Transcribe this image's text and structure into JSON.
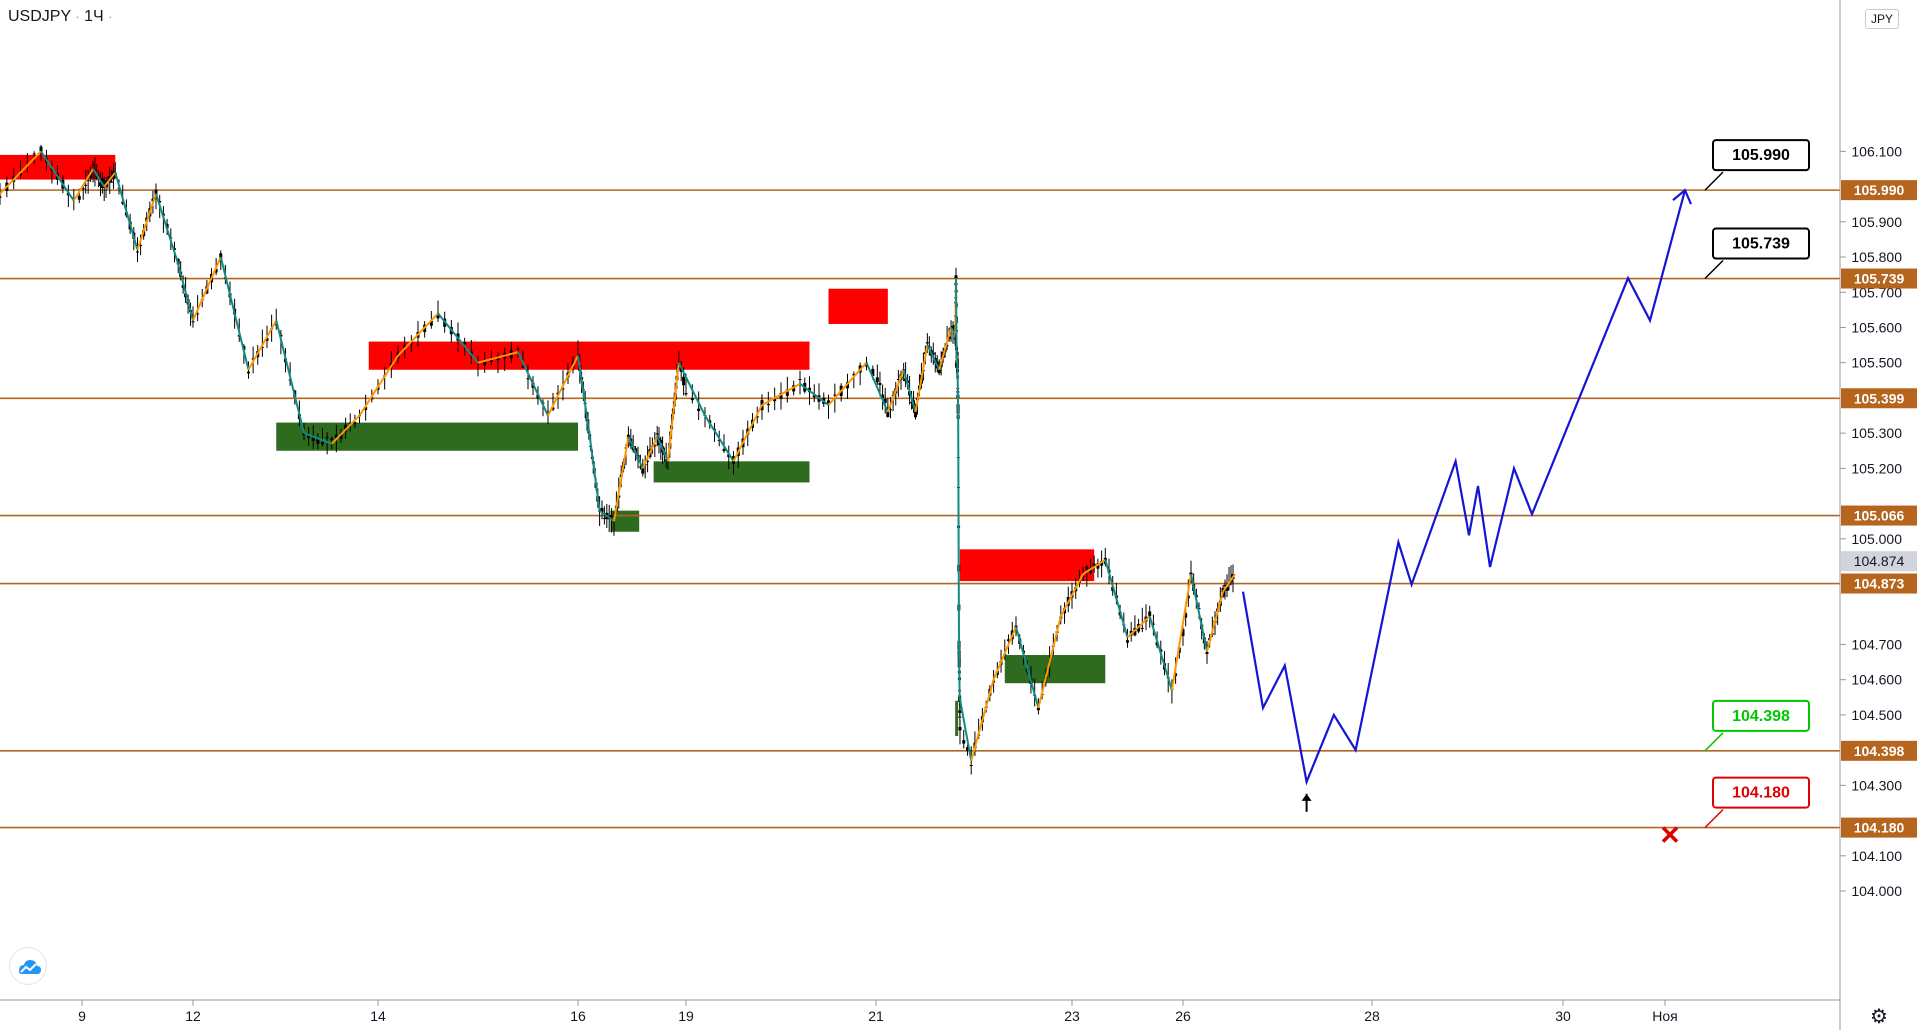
{
  "header": {
    "symbol": "USDJPY",
    "separator": "·",
    "interval": "1Ч",
    "dot": "·"
  },
  "currency": "JPY",
  "settings_icon": "gear-icon",
  "logo_icon": "tradingview-cloud-icon",
  "colors": {
    "level_line": "#b5651d",
    "resistance_zone": "#ff0000",
    "support_zone": "#2e6b1f",
    "swing_up": "#ff9800",
    "swing_down": "#138a84",
    "forecast": "#1515d6",
    "target_up": "#000000",
    "target_down": "#00c800",
    "stop": "#e00000",
    "current_price": "#d1d4dc"
  },
  "chart_data": {
    "type": "line",
    "symbol": "USDJPY",
    "interval": "1H",
    "y_range": [
      103.97,
      106.18
    ],
    "y_ticks": [
      106.1,
      105.9,
      105.8,
      105.7,
      105.6,
      105.5,
      105.3,
      105.2,
      105.0,
      104.7,
      104.6,
      104.5,
      104.3,
      104.1,
      104.0
    ],
    "y_tick_labels": [
      "106.100",
      "105.900",
      "105.800",
      "105.700",
      "105.600",
      "105.500",
      "105.300",
      "105.200",
      "105.000",
      "104.700",
      "104.600",
      "104.500",
      "104.300",
      "104.100",
      "104.000"
    ],
    "x_ticks": [
      "9",
      "12",
      "14",
      "16",
      "19",
      "21",
      "23",
      "26",
      "28",
      "30",
      "Ноя"
    ],
    "levels": [
      {
        "value": 105.99,
        "label": "105.990"
      },
      {
        "value": 105.739,
        "label": "105.739"
      },
      {
        "value": 105.399,
        "label": "105.399"
      },
      {
        "value": 105.066,
        "label": "105.066"
      },
      {
        "value": 104.873,
        "label": "104.873"
      },
      {
        "value": 104.398,
        "label": "104.398"
      },
      {
        "value": 104.18,
        "label": "104.180"
      }
    ],
    "current_price": {
      "value": 104.874,
      "label": "104.874"
    },
    "resistance_zones": [
      {
        "x0": 0,
        "x1": 9.9,
        "y0": 106.02,
        "y1": 106.09
      },
      {
        "x0": 13.9,
        "x1": 20.3,
        "y0": 105.48,
        "y1": 105.56
      },
      {
        "x0": 20.5,
        "x1": 21.3,
        "y0": 105.61,
        "y1": 105.71
      },
      {
        "x0": 25.9,
        "x1": 28.4,
        "y0": 104.88,
        "y1": 104.97
      }
    ],
    "support_zones": [
      {
        "x0": 12.9,
        "x1": 16.0,
        "y0": 105.25,
        "y1": 105.33
      },
      {
        "x0": 16.9,
        "x1": 17.7,
        "y0": 105.02,
        "y1": 105.08
      },
      {
        "x0": 18.1,
        "x1": 20.3,
        "y0": 105.16,
        "y1": 105.22
      },
      {
        "x0": 23.1,
        "x1": 24.9,
        "y0": 104.44,
        "y1": 104.54
      },
      {
        "x0": 26.8,
        "x1": 28.6,
        "y0": 104.59,
        "y1": 104.67
      }
    ],
    "price_path": [
      [
        8.0,
        105.98
      ],
      [
        8.5,
        106.1
      ],
      [
        8.9,
        105.96
      ],
      [
        9.3,
        106.05
      ],
      [
        9.6,
        106.0
      ],
      [
        9.9,
        106.04
      ],
      [
        10.5,
        105.82
      ],
      [
        11.0,
        105.98
      ],
      [
        11.6,
        105.78
      ],
      [
        12.0,
        105.62
      ],
      [
        12.3,
        105.8
      ],
      [
        12.6,
        105.48
      ],
      [
        12.9,
        105.62
      ],
      [
        13.2,
        105.3
      ],
      [
        13.5,
        105.27
      ],
      [
        13.8,
        105.35
      ],
      [
        14.2,
        105.52
      ],
      [
        14.6,
        105.64
      ],
      [
        15.0,
        105.5
      ],
      [
        15.4,
        105.53
      ],
      [
        15.7,
        105.35
      ],
      [
        16.0,
        105.52
      ],
      [
        16.3,
        105.31
      ],
      [
        16.6,
        105.08
      ],
      [
        17.0,
        105.05
      ],
      [
        17.4,
        105.29
      ],
      [
        17.8,
        105.2
      ],
      [
        18.2,
        105.29
      ],
      [
        18.5,
        105.22
      ],
      [
        18.8,
        105.5
      ],
      [
        19.2,
        105.35
      ],
      [
        19.5,
        105.22
      ],
      [
        19.8,
        105.38
      ],
      [
        20.2,
        105.44
      ],
      [
        20.5,
        105.38
      ],
      [
        20.9,
        105.5
      ],
      [
        21.3,
        105.36
      ],
      [
        21.7,
        105.48
      ],
      [
        22.0,
        105.36
      ],
      [
        22.3,
        105.55
      ],
      [
        22.6,
        105.48
      ],
      [
        22.9,
        105.6
      ],
      [
        23.2,
        105.58
      ],
      [
        23.6,
        105.74
      ],
      [
        24.0,
        105.5
      ],
      [
        24.3,
        105.52
      ],
      [
        24.6,
        105.46
      ],
      [
        24.9,
        105.35
      ],
      [
        25.4,
        104.7
      ],
      [
        25.8,
        104.55
      ],
      [
        26.2,
        104.37
      ],
      [
        26.6,
        104.6
      ],
      [
        27.0,
        104.75
      ],
      [
        27.4,
        104.52
      ],
      [
        27.8,
        104.78
      ],
      [
        28.2,
        104.9
      ],
      [
        28.6,
        104.94
      ],
      [
        29.0,
        104.72
      ],
      [
        29.4,
        104.78
      ],
      [
        29.8,
        104.57
      ],
      [
        30.2,
        104.9
      ],
      [
        30.6,
        104.68
      ],
      [
        31.0,
        104.85
      ],
      [
        31.3,
        104.9
      ]
    ],
    "forecast_path": [
      [
        31.5,
        104.85
      ],
      [
        32.0,
        104.52
      ],
      [
        32.4,
        104.64
      ],
      [
        32.8,
        104.31
      ],
      [
        33.3,
        104.5
      ],
      [
        33.7,
        104.4
      ],
      [
        34.6,
        104.99
      ],
      [
        34.9,
        104.87
      ],
      [
        35.9,
        105.22
      ],
      [
        36.3,
        105.01
      ],
      [
        36.6,
        105.15
      ],
      [
        37.0,
        104.92
      ],
      [
        37.8,
        105.2
      ],
      [
        38.2,
        105.07
      ],
      [
        39.8,
        105.74
      ],
      [
        40.2,
        105.62
      ],
      [
        40.9,
        105.99
      ]
    ],
    "annotations": [
      {
        "text": "105.990",
        "kind": "target",
        "x": 40.9,
        "y": 105.99
      },
      {
        "text": "105.739",
        "kind": "target",
        "x": 40.9,
        "y": 105.739
      },
      {
        "text": "104.398",
        "kind": "take-profit",
        "x": 40.9,
        "y": 104.398
      },
      {
        "text": "104.180",
        "kind": "stop",
        "x": 40.9,
        "y": 104.18
      }
    ],
    "entry_arrow": {
      "x": 32.8,
      "y": 104.31
    },
    "stop_marker": {
      "x": 40.6,
      "y": 104.16
    },
    "grid": false,
    "legend": "none"
  }
}
